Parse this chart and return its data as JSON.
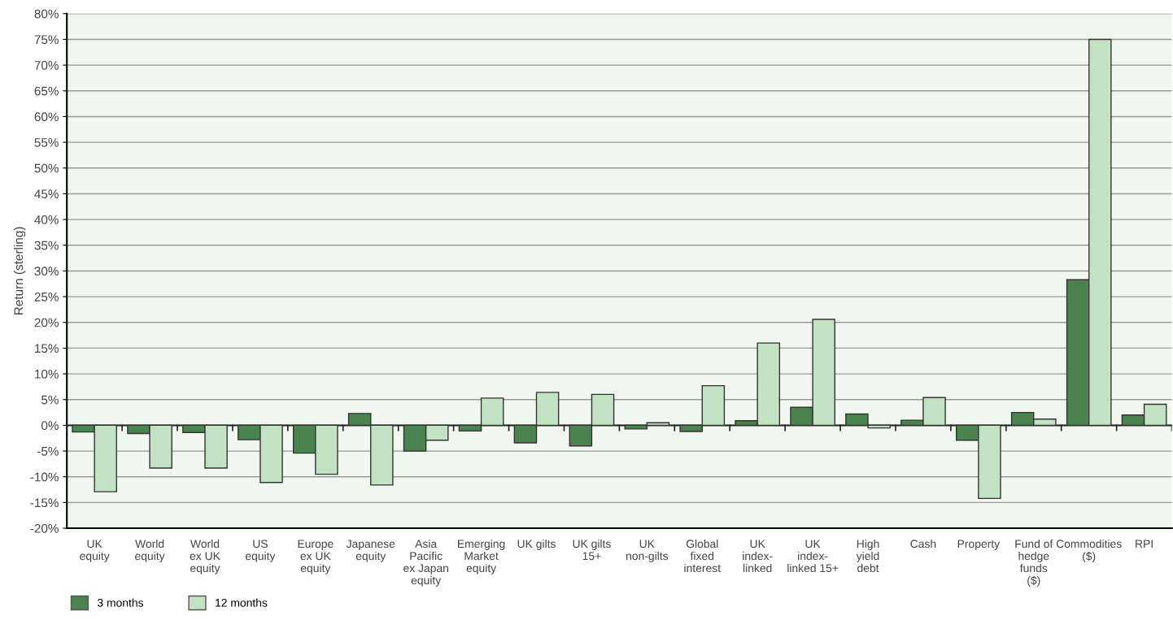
{
  "chart_data": {
    "type": "bar",
    "ylabel": "Return (sterling)",
    "categories": [
      "UK\nequity",
      "World\nequity",
      "World\nex UK\nequity",
      "US\nequity",
      "Europe\nex UK\nequity",
      "Japanese\nequity",
      "Asia\nPacific\nex Japan\nequity",
      "Emerging\nMarket\nequity",
      "UK gilts",
      "UK gilts\n15+",
      "UK\nnon-gilts",
      "Global\nfixed\ninterest",
      "UK\nindex-\nlinked",
      "UK\nindex-\nlinked 15+",
      "High\nyield\ndebt",
      "Cash",
      "Property",
      "Fund of\nhedge\nfunds\n($)",
      "Commodities\n($)",
      "RPI"
    ],
    "series": [
      {
        "name": "3 months",
        "color": "#4a8250",
        "values": [
          -1.3,
          -1.6,
          -1.4,
          -2.8,
          -5.4,
          2.3,
          -5.0,
          -1.1,
          -3.4,
          -4.0,
          -0.7,
          -1.2,
          0.9,
          3.5,
          2.2,
          1.0,
          -2.9,
          2.5,
          28.3,
          2.0
        ]
      },
      {
        "name": "12 months",
        "color": "#c3e2c3",
        "values": [
          -12.9,
          -8.3,
          -8.3,
          -11.1,
          -9.5,
          -11.6,
          -2.9,
          5.3,
          6.4,
          6.0,
          0.5,
          7.7,
          16.0,
          20.6,
          -0.5,
          5.4,
          -14.2,
          1.2,
          75,
          4.1
        ]
      }
    ],
    "ylim": [
      -20,
      80
    ],
    "yticks": [
      {
        "value": -20,
        "label": "-20%"
      },
      {
        "value": -15,
        "label": "-15%"
      },
      {
        "value": -10,
        "label": "-10%"
      },
      {
        "value": -5,
        "label": "-5%"
      },
      {
        "value": 0,
        "label": "0%"
      },
      {
        "value": 5,
        "label": "5%"
      },
      {
        "value": 10,
        "label": "10%"
      },
      {
        "value": 15,
        "label": "15%"
      },
      {
        "value": 20,
        "label": "20%"
      },
      {
        "value": 25,
        "label": "25%"
      },
      {
        "value": 30,
        "label": "30%"
      },
      {
        "value": 35,
        "label": "35%"
      },
      {
        "value": 40,
        "label": "40%"
      },
      {
        "value": 45,
        "label": "45%"
      },
      {
        "value": 50,
        "label": "50%"
      },
      {
        "value": 55,
        "label": "55%"
      },
      {
        "value": 60,
        "label": "60%"
      },
      {
        "value": 65,
        "label": "65%"
      },
      {
        "value": 70,
        "label": "70%"
      },
      {
        "value": 75,
        "label": "75%"
      },
      {
        "value": 80,
        "label": "80%"
      }
    ],
    "grid": "y",
    "legend": "bottom left"
  }
}
